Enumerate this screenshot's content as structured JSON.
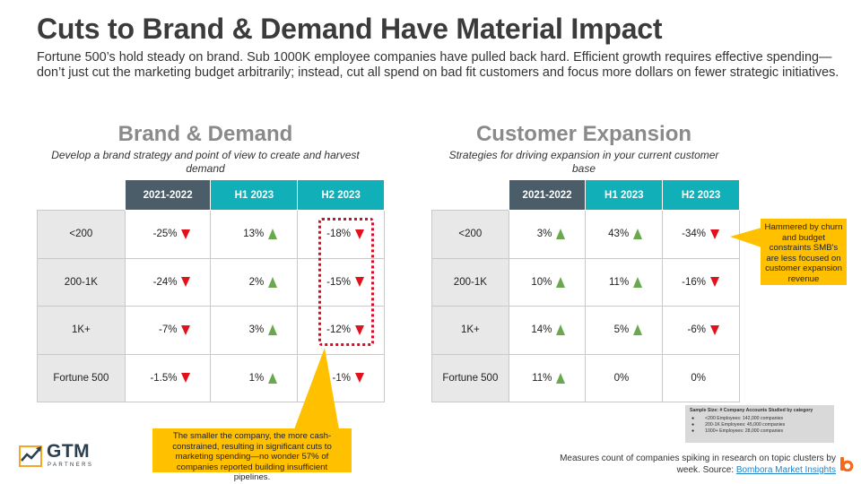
{
  "header": {
    "title": "Cuts to Brand & Demand Have Material Impact",
    "subtitle": "Fortune 500’s hold steady on brand. Sub 1000K employee companies have pulled back hard. Efficient growth requires effective spending—don’t just cut the marketing budget arbitrarily; instead, cut all spend on bad fit customers and focus more dollars on fewer strategic initiatives."
  },
  "brand": {
    "title": "Brand & Demand",
    "desc": "Develop a brand strategy and point of view to create and harvest demand",
    "headers": [
      "2021-2022",
      "H1 2023",
      "H2 2023"
    ],
    "rows": [
      {
        "label": "<200",
        "cells": [
          {
            "v": "-25%",
            "dir": "down"
          },
          {
            "v": "13%",
            "dir": "up"
          },
          {
            "v": "-18%",
            "dir": "down"
          }
        ]
      },
      {
        "label": "200-1K",
        "cells": [
          {
            "v": "-24%",
            "dir": "down"
          },
          {
            "v": "2%",
            "dir": "up"
          },
          {
            "v": "-15%",
            "dir": "down"
          }
        ]
      },
      {
        "label": "1K+",
        "cells": [
          {
            "v": "-7%",
            "dir": "down"
          },
          {
            "v": "3%",
            "dir": "up"
          },
          {
            "v": "-12%",
            "dir": "down"
          }
        ]
      },
      {
        "label": "Fortune 500",
        "cells": [
          {
            "v": "-1.5%",
            "dir": "down"
          },
          {
            "v": "1%",
            "dir": "up"
          },
          {
            "v": "-1%",
            "dir": "down"
          }
        ]
      }
    ]
  },
  "expansion": {
    "title": "Customer Expansion",
    "desc": "Strategies for driving expansion in your current customer base",
    "headers": [
      "2021-2022",
      "H1 2023",
      "H2 2023"
    ],
    "rows": [
      {
        "label": "<200",
        "cells": [
          {
            "v": "3%",
            "dir": "up"
          },
          {
            "v": "43%",
            "dir": "up"
          },
          {
            "v": "-34%",
            "dir": "down"
          }
        ]
      },
      {
        "label": "200-1K",
        "cells": [
          {
            "v": "10%",
            "dir": "up"
          },
          {
            "v": "11%",
            "dir": "up"
          },
          {
            "v": "-16%",
            "dir": "down"
          }
        ]
      },
      {
        "label": "1K+",
        "cells": [
          {
            "v": "14%",
            "dir": "up"
          },
          {
            "v": "5%",
            "dir": "up"
          },
          {
            "v": "-6%",
            "dir": "down"
          }
        ]
      },
      {
        "label": "Fortune 500",
        "cells": [
          {
            "v": "11%",
            "dir": "up"
          },
          {
            "v": "0%",
            "dir": "none"
          },
          {
            "v": "0%",
            "dir": "none"
          }
        ]
      }
    ]
  },
  "callouts": {
    "small_company": "The smaller the company, the more cash-constrained, resulting in significant cuts to marketing spending—no wonder 57% of companies reported building insufficient pipelines.",
    "churn": "Hammered by churn and budget constraints SMB's are less focused on customer expansion revenue"
  },
  "sample": {
    "title": "Sample Size: # Company Accounts Studied by category",
    "items": [
      "<200 Employees: 142,000 companies",
      "200-1K Employees: 45,000 companies",
      "1000+ Employees: 28,000 companies"
    ]
  },
  "footnote": {
    "text": "Measures count of companies spiking in research on topic clusters by week. Source: ",
    "link": "Bombora Market Insights"
  },
  "logo": {
    "name": "GTM",
    "sub": "PARTNERS"
  },
  "colors": {
    "header_dark": "#4a5d68",
    "header_teal": "#11b0b8",
    "down_arrow": "#e0121b",
    "up_arrow": "#6aa84f",
    "callout": "#ffc000",
    "accent_orange": "#f26b1d"
  }
}
